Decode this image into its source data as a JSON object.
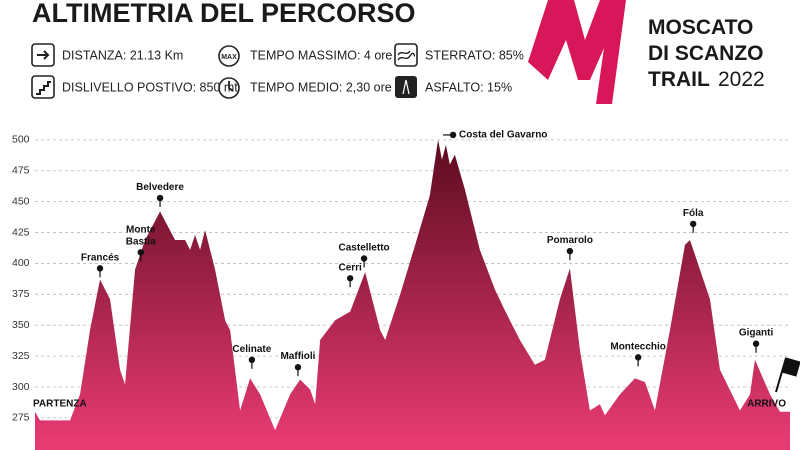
{
  "header": {
    "title": "ALTIMETRIA DEL PERCORSO",
    "info": [
      "DISTANZA: 21.13 Km",
      "DISLIVELLO POSTIVO: 850 mt",
      "TEMPO MASSIMO: 4 ore",
      "TEMPO MEDIO: 2,30 ore",
      "STERRATO: 85%",
      "ASFALTO: 15%"
    ],
    "logo": [
      "MOSCATO",
      "DI SCANZO",
      "TRAIL",
      "2022"
    ]
  },
  "chart_data": {
    "type": "area",
    "x": [
      0,
      0.14,
      0.98,
      1.26,
      1.54,
      1.82,
      2.1,
      2.38,
      2.52,
      2.8,
      3.08,
      3.5,
      3.92,
      4.2,
      4.34,
      4.48,
      4.62,
      4.76,
      5.04,
      5.32,
      5.46,
      5.74,
      6.02,
      6.3,
      6.72,
      7.14,
      7.42,
      7.7,
      7.84,
      7.98,
      8.4,
      8.82,
      9.24,
      9.66,
      9.8,
      10.22,
      10.64,
      11.05,
      11.28,
      11.39,
      11.5,
      11.61,
      11.75,
      12.03,
      12.45,
      12.87,
      13.15,
      13.57,
      13.99,
      14.27,
      14.69,
      14.97,
      15.25,
      15.53,
      15.81,
      15.95,
      16.37,
      16.79,
      17.07,
      17.35,
      17.77,
      18.19,
      18.33,
      18.61,
      18.89,
      19.17,
      19.73,
      20.01,
      20.15,
      20.57,
      20.85,
      21.13
    ],
    "values": [
      280,
      273,
      273,
      294,
      346,
      387,
      371,
      314,
      302,
      395,
      419,
      442,
      419,
      419,
      411,
      423,
      411,
      427,
      395,
      354,
      346,
      281,
      307,
      294,
      265,
      294,
      306,
      298,
      286,
      338,
      354,
      361,
      393,
      346,
      338,
      375,
      415,
      455,
      500,
      484,
      496,
      480,
      488,
      460,
      411,
      379,
      362,
      338,
      318,
      322,
      371,
      396,
      330,
      281,
      286,
      277,
      294,
      307,
      304,
      281,
      346,
      415,
      419,
      395,
      371,
      314,
      281,
      294,
      322,
      294,
      280,
      280
    ],
    "xlim": [
      0,
      21.13
    ],
    "ylim": [
      249,
      508
    ],
    "yticks": [
      275,
      300,
      325,
      350,
      375,
      400,
      425,
      450,
      475,
      500
    ],
    "grid": true,
    "colors": [
      "#5c0b1f",
      "#e63a72"
    ],
    "start_label": "PARTENZA",
    "end_label": "ARRIVO",
    "annotations": [
      {
        "text": [
          "Francés"
        ],
        "x": 1.82,
        "y": 396
      },
      {
        "text": [
          "Monte",
          "Bastia"
        ],
        "x": 2.96,
        "y": 409
      },
      {
        "text": [
          "Belvedere"
        ],
        "x": 3.5,
        "y": 453
      },
      {
        "text": [
          "Celinate"
        ],
        "x": 6.07,
        "y": 322
      },
      {
        "text": [
          "Maffioli"
        ],
        "x": 7.36,
        "y": 316
      },
      {
        "text": [
          "Cerri"
        ],
        "x": 8.82,
        "y": 388
      },
      {
        "text": [
          "Castelletto"
        ],
        "x": 9.21,
        "y": 404
      },
      {
        "text": [
          "Costa del Gavarno"
        ],
        "x": 11.7,
        "y": 504,
        "side": "right"
      },
      {
        "text": [
          "Pomarolo"
        ],
        "x": 14.97,
        "y": 410
      },
      {
        "text": [
          "Montecchio"
        ],
        "x": 16.88,
        "y": 324
      },
      {
        "text": [
          "Fóla"
        ],
        "x": 18.42,
        "y": 432
      },
      {
        "text": [
          "Giganti"
        ],
        "x": 20.18,
        "y": 335
      }
    ]
  }
}
